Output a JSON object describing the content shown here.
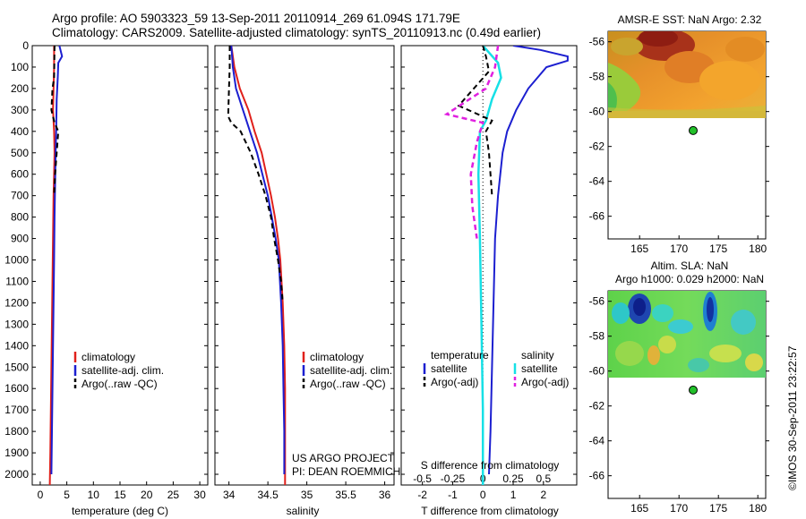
{
  "header": {
    "line1": "Argo profile: AO 5903323_59 13-Sep-2011 20110914_269 61.094S 171.79E",
    "line2": "Climatology: CARS2009. Satellite-adjusted climatology: synTS_20110913.nc (0.49d earlier)"
  },
  "colors": {
    "climatology": "#e0201b",
    "satellite": "#1c1fd0",
    "argo": "#000000",
    "salinity_satellite": "#16e0e6",
    "salinity_argo": "#e020e0"
  },
  "chart_data": [
    {
      "type": "line",
      "panel": "temperature",
      "xlabel": "temperature (deg C)",
      "ylabel": "",
      "xlim": [
        -1.5,
        31.5
      ],
      "ylim": [
        0,
        2050
      ],
      "y_inverted": true,
      "xticks": [
        0,
        5,
        10,
        15,
        20,
        25,
        30
      ],
      "yticks": [
        0,
        100,
        200,
        300,
        400,
        500,
        600,
        700,
        800,
        900,
        1000,
        1100,
        1200,
        1300,
        1400,
        1500,
        1600,
        1700,
        1800,
        1900,
        2000
      ],
      "legend": [
        "climatology",
        "satellite-adj. clim.",
        "Argo(..raw -QC)"
      ],
      "legend_position": "bottom-center",
      "series": [
        {
          "name": "climatology",
          "style": "solid",
          "points": [
            [
              2.6,
              0
            ],
            [
              2.6,
              100
            ],
            [
              2.5,
              200
            ],
            [
              2.4,
              300
            ],
            [
              2.6,
              400
            ],
            [
              2.7,
              500
            ],
            [
              2.6,
              600
            ],
            [
              2.5,
              700
            ],
            [
              2.4,
              900
            ],
            [
              2.3,
              1100
            ],
            [
              2.2,
              1300
            ],
            [
              2.1,
              1500
            ],
            [
              2.0,
              1700
            ],
            [
              1.9,
              1900
            ],
            [
              1.8,
              2050
            ]
          ]
        },
        {
          "name": "satellite-adj. clim.",
          "style": "solid",
          "points": [
            [
              3.6,
              0
            ],
            [
              4.1,
              50
            ],
            [
              3.4,
              80
            ],
            [
              3.3,
              150
            ],
            [
              3.1,
              250
            ],
            [
              3.0,
              400
            ],
            [
              2.9,
              500
            ],
            [
              2.8,
              650
            ],
            [
              2.7,
              800
            ],
            [
              2.6,
              1000
            ],
            [
              2.5,
              1200
            ],
            [
              2.4,
              1400
            ],
            [
              2.3,
              1600
            ],
            [
              2.2,
              1800
            ],
            [
              2.1,
              2000
            ]
          ]
        },
        {
          "name": "Argo(..raw -QC)",
          "style": "dashed",
          "points": [
            [
              2.7,
              0
            ],
            [
              2.6,
              150
            ],
            [
              2.3,
              200
            ],
            [
              2.1,
              300
            ],
            [
              2.7,
              360
            ],
            [
              3.4,
              400
            ],
            [
              3.1,
              500
            ],
            [
              2.8,
              600
            ],
            [
              2.6,
              700
            ]
          ]
        }
      ]
    },
    {
      "type": "line",
      "panel": "salinity",
      "xlabel": "salinity",
      "ylabel": "",
      "xlim": [
        33.82,
        36.12
      ],
      "ylim": [
        0,
        2050
      ],
      "y_inverted": true,
      "xticks": [
        34,
        34.5,
        35,
        35.5,
        36
      ],
      "legend": [
        "climatology",
        "satellite-adj. clim.",
        "Argo(..raw -QC)"
      ],
      "legend_position": "bottom-center",
      "annotations": [
        "US ARGO PROJECT",
        "PI: DEAN ROEMMICH"
      ],
      "series": [
        {
          "name": "climatology",
          "style": "solid",
          "points": [
            [
              34.03,
              0
            ],
            [
              34.07,
              100
            ],
            [
              34.14,
              200
            ],
            [
              34.25,
              300
            ],
            [
              34.33,
              400
            ],
            [
              34.42,
              500
            ],
            [
              34.48,
              600
            ],
            [
              34.54,
              700
            ],
            [
              34.59,
              800
            ],
            [
              34.63,
              900
            ],
            [
              34.66,
              1000
            ],
            [
              34.69,
              1200
            ],
            [
              34.71,
              1400
            ],
            [
              34.72,
              1600
            ],
            [
              34.72,
              2050
            ]
          ]
        },
        {
          "name": "satellite-adj. clim.",
          "style": "solid",
          "points": [
            [
              34.03,
              0
            ],
            [
              34.05,
              100
            ],
            [
              34.09,
              200
            ],
            [
              34.18,
              300
            ],
            [
              34.27,
              400
            ],
            [
              34.36,
              500
            ],
            [
              34.43,
              600
            ],
            [
              34.5,
              700
            ],
            [
              34.55,
              800
            ],
            [
              34.6,
              900
            ],
            [
              34.64,
              1000
            ],
            [
              34.67,
              1200
            ],
            [
              34.69,
              1400
            ],
            [
              34.7,
              1600
            ],
            [
              34.71,
              1800
            ],
            [
              34.71,
              2000
            ]
          ]
        },
        {
          "name": "Argo(..raw -QC)",
          "style": "dashed",
          "points": [
            [
              34.01,
              0
            ],
            [
              34.01,
              100
            ],
            [
              34.0,
              200
            ],
            [
              33.99,
              330
            ],
            [
              34.03,
              360
            ],
            [
              34.15,
              400
            ],
            [
              34.28,
              500
            ],
            [
              34.38,
              600
            ],
            [
              34.47,
              700
            ],
            [
              34.54,
              800
            ],
            [
              34.58,
              900
            ],
            [
              34.63,
              1000
            ],
            [
              34.67,
              1100
            ],
            [
              34.69,
              1200
            ]
          ]
        }
      ]
    },
    {
      "type": "line",
      "panel": "difference",
      "xlabel": "T difference from climatology",
      "xlabel_top": "S difference from climatology",
      "xlim": [
        -2.7,
        3.1
      ],
      "ylim": [
        0,
        2050
      ],
      "y_inverted": true,
      "xticks": [
        -2,
        -1,
        0,
        1,
        2
      ],
      "xticks_salinity": [
        -0.5,
        -0.25,
        0,
        0.25,
        0.5
      ],
      "legend_headers": [
        "temperature",
        "salinity"
      ],
      "legend": [
        "satellite",
        "Argo(-adj)",
        "satellite",
        "Argo(-adj)"
      ],
      "legend_position": "bottom-center",
      "series": [
        {
          "name": "temperature satellite",
          "style": "solid",
          "points": [
            [
              1.0,
              0
            ],
            [
              1.9,
              20
            ],
            [
              2.8,
              50
            ],
            [
              2.8,
              70
            ],
            [
              2.1,
              100
            ],
            [
              1.5,
              200
            ],
            [
              1.1,
              300
            ],
            [
              0.8,
              400
            ],
            [
              0.65,
              500
            ],
            [
              0.5,
              700
            ],
            [
              0.4,
              900
            ],
            [
              0.35,
              1200
            ],
            [
              0.3,
              1500
            ],
            [
              0.25,
              1800
            ],
            [
              0.2,
              2000
            ]
          ]
        },
        {
          "name": "temperature Argo(-adj)",
          "style": "dashed",
          "points": [
            [
              0.0,
              0
            ],
            [
              0.1,
              50
            ],
            [
              0.2,
              120
            ],
            [
              -0.3,
              200
            ],
            [
              -0.8,
              280
            ],
            [
              0.3,
              350
            ],
            [
              0.1,
              400
            ],
            [
              0.2,
              500
            ],
            [
              0.3,
              700
            ]
          ]
        },
        {
          "name": "salinity satellite",
          "style": "solid",
          "points": [
            [
              0.0,
              0
            ],
            [
              0.5,
              80
            ],
            [
              0.6,
              150
            ],
            [
              0.3,
              250
            ],
            [
              0.1,
              350
            ],
            [
              -0.1,
              400
            ],
            [
              -0.15,
              600
            ],
            [
              -0.1,
              900
            ],
            [
              -0.05,
              1300
            ],
            [
              0.0,
              1700
            ],
            [
              0.0,
              2050
            ]
          ]
        },
        {
          "name": "salinity Argo(-adj)",
          "style": "dashed",
          "points": [
            [
              0.5,
              0
            ],
            [
              0.4,
              100
            ],
            [
              0.1,
              200
            ],
            [
              -1.2,
              320
            ],
            [
              0.0,
              360
            ],
            [
              -0.2,
              450
            ],
            [
              -0.4,
              600
            ],
            [
              -0.35,
              750
            ],
            [
              -0.2,
              900
            ]
          ]
        },
        {
          "name": "zero",
          "style": "dotted",
          "points": [
            [
              0,
              0
            ],
            [
              0,
              2050
            ]
          ]
        }
      ]
    },
    {
      "type": "heatmap",
      "panel": "sst_map",
      "title": "AMSR-E SST: NaN Argo: 2.32",
      "xlim": [
        161,
        181
      ],
      "ylim": [
        -67.3,
        -55.4
      ],
      "xticks": [
        165,
        170,
        175,
        180
      ],
      "yticks": [
        -56,
        -58,
        -60,
        -62,
        -64,
        -66
      ],
      "data_extent": {
        "lon": [
          161,
          180.2
        ],
        "lat": [
          -60.2,
          -55.4
        ]
      },
      "marker": {
        "lon": 171.79,
        "lat": -61.09,
        "color": "#22c02a"
      }
    },
    {
      "type": "heatmap",
      "panel": "sla_map",
      "title": "Altim. SLA: NaN",
      "subtitle": "Argo h1000: 0.029 h2000: NaN",
      "xlim": [
        161,
        181
      ],
      "ylim": [
        -67.3,
        -55.4
      ],
      "xticks": [
        165,
        170,
        175,
        180
      ],
      "yticks": [
        -56,
        -58,
        -60,
        -62,
        -64,
        -66
      ],
      "data_extent": {
        "lon": [
          161,
          180.2
        ],
        "lat": [
          -60.2,
          -55.4
        ]
      },
      "marker": {
        "lon": 171.79,
        "lat": -61.09,
        "color": "#22c02a"
      }
    }
  ],
  "stamp": "©IMOS 30-Sep-2011 23:22:57"
}
